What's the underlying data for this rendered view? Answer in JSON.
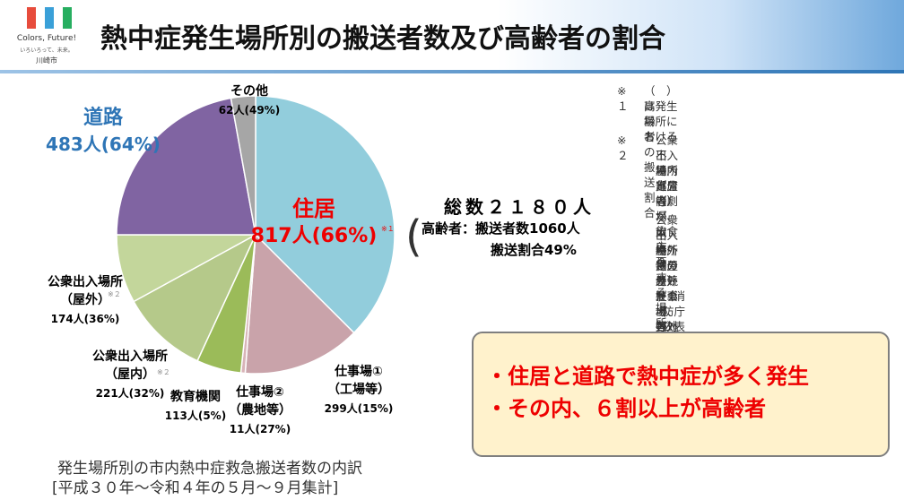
{
  "header": {
    "title": "熱中症発生場所別の搬送者数及び高齢者の割合",
    "logo_text": "Colors, Future!",
    "logo_sub": "いろいろって、未来。",
    "city": "川崎市"
  },
  "chart_data": {
    "type": "pie",
    "categories": [
      "住居",
      "仕事場①\n（工場等）",
      "仕事場②\n（農地等）",
      "教育機関",
      "公衆出入場所\n（屋内）",
      "公衆出入場所\n（屋外）",
      "道路",
      "その他"
    ],
    "values": [
      817,
      299,
      11,
      113,
      221,
      174,
      483,
      62
    ],
    "value_labels": [
      "817人(66%)",
      "299人(15%)",
      "11人(27%)",
      "113人(5%)",
      "221人(32%)",
      "174人(36%)",
      "483人(64%)",
      "62人(49%)"
    ],
    "markers": [
      "※１",
      null,
      null,
      null,
      "※２",
      "※２",
      null,
      null
    ],
    "colors": [
      "#92cddc",
      "#c9a3aa",
      "#d8b4b8",
      "#9bbb59",
      "#b5c98a",
      "#c3d69b",
      "#8064a2",
      "#a6a6a6"
    ]
  },
  "summary": {
    "total": "総数２１８０人",
    "line1": "高齢者：搬送者数1060人",
    "line2": "搬送割合49%"
  },
  "notes": [
    {
      "mark": "※１",
      "lines": [
        "（　）は発生場所における",
        "高齢者の搬送割合"
      ]
    },
    {
      "mark": "※２",
      "lines": [
        "公衆出入場所（屋内）",
        "不特定者が出入りする場所の",
        "屋内部分（劇場、飲食店、百",
        "貨店等）"
      ]
    },
    {
      "lines": [
        "公衆出入場所（屋外）",
        "不特定者が出入りする場所の",
        "屋外部分（競技場、各対象",
        "物の屋外駐車場、野外コン",
        "サート会場等）",
        "（消防庁公表資料より）"
      ]
    }
  ],
  "callout": [
    "・住居と道路で熱中症が多く発生",
    "・その内、６割以上が高齢者"
  ],
  "caption": [
    "発生場所別の市内熱中症救急搬送者数の内訳",
    "[平成３０年～令和４年の５月～９月集計]"
  ]
}
